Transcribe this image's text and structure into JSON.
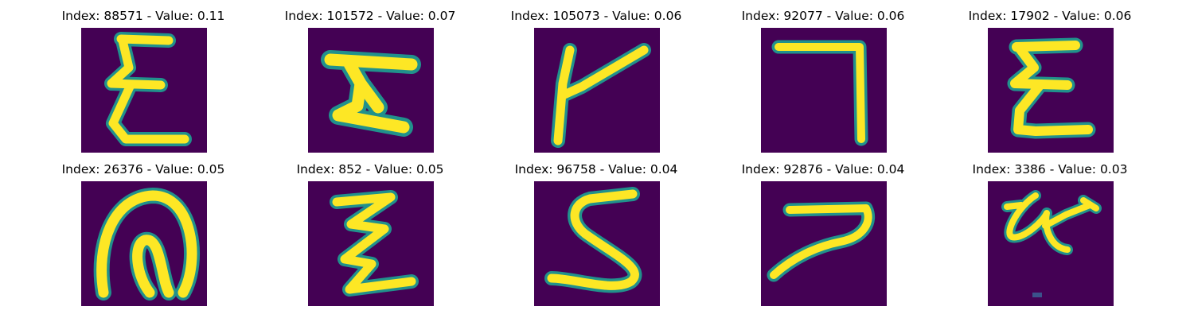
{
  "figure": {
    "background": "#440154",
    "stroke_color": "#fde725",
    "edge_color": "#21918c",
    "panels": [
      {
        "title": "Index: 88571 - Value: 0.11",
        "glyph": "sigma-like-glyph"
      },
      {
        "title": "Index: 101572 - Value: 0.07",
        "glyph": "H-like-glyph"
      },
      {
        "title": "Index: 105073 - Value: 0.06",
        "glyph": "Y-like-glyph"
      },
      {
        "title": "Index: 92077 - Value: 0.06",
        "glyph": "seven-like-glyph"
      },
      {
        "title": "Index: 17902 - Value: 0.06",
        "glyph": "sigma-like-glyph"
      },
      {
        "title": "Index: 26376 - Value: 0.05",
        "glyph": "loop-glyph"
      },
      {
        "title": "Index: 852 - Value: 0.05",
        "glyph": "zigzag-glyph"
      },
      {
        "title": "Index: 96758 - Value: 0.04",
        "glyph": "S-like-glyph"
      },
      {
        "title": "Index: 92876 - Value: 0.04",
        "glyph": "seven-like-glyph"
      },
      {
        "title": "Index: 3386 - Value: 0.03",
        "glyph": "scribble-glyph"
      }
    ]
  }
}
